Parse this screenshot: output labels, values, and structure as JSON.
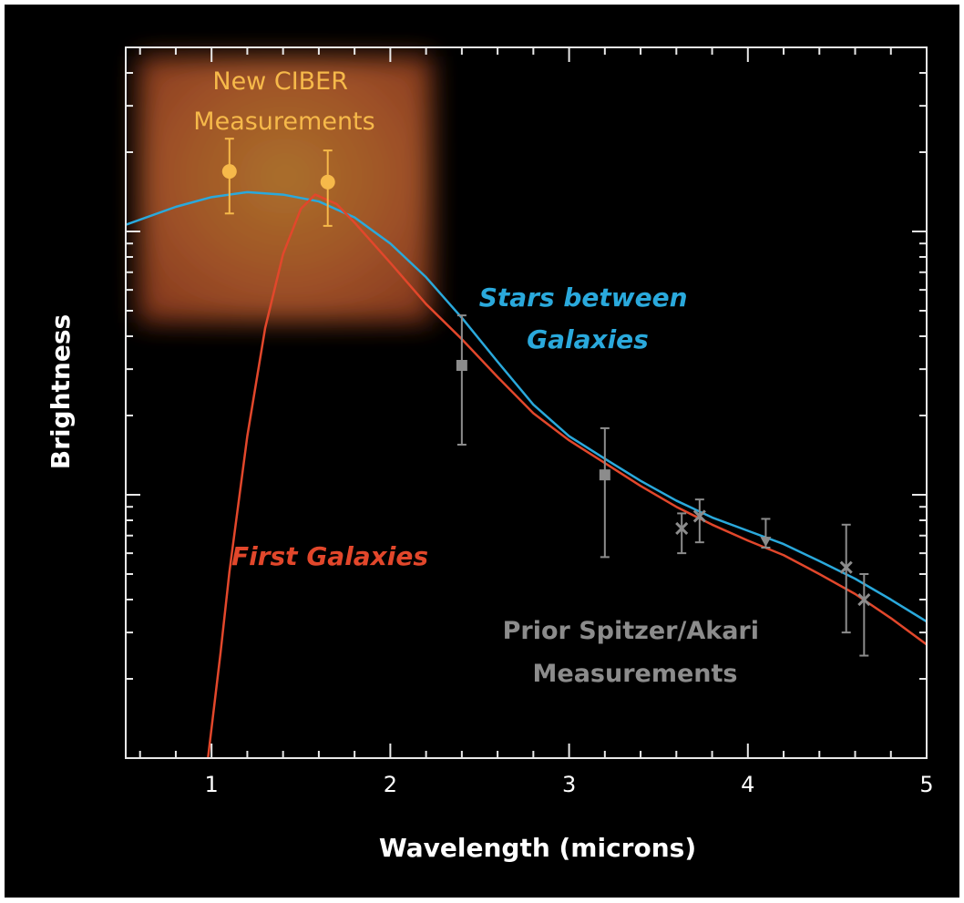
{
  "chart_data": {
    "type": "line",
    "xlabel": "Wavelength (microns)",
    "ylabel": "Brightness",
    "xlim": [
      0.52,
      5
    ],
    "xticks": [
      1,
      2,
      3,
      4,
      5
    ],
    "xminor_ticks": [
      0.6,
      0.8,
      1.2,
      1.4,
      1.6,
      1.8,
      2.2,
      2.4,
      2.6,
      2.8,
      3.2,
      3.4,
      3.6,
      3.8,
      4.2,
      4.4,
      4.6,
      4.8
    ],
    "ylim": [
      0.1,
      50
    ],
    "ylog": true,
    "yticks": [
      1,
      10
    ],
    "yminor_ticks": [
      0.2,
      0.3,
      0.4,
      0.5,
      0.6,
      0.7,
      0.8,
      0.9,
      2,
      3,
      4,
      5,
      6,
      7,
      8,
      9,
      20,
      30,
      40
    ],
    "series": [
      {
        "label": [
          "Stars between",
          "Galaxies"
        ],
        "color": "#2aa9dc",
        "x": [
          0.52,
          0.8,
          1.0,
          1.2,
          1.4,
          1.6,
          1.8,
          2.0,
          2.2,
          2.4,
          2.6,
          2.8,
          3.0,
          3.2,
          3.4,
          3.6,
          3.8,
          4.0,
          4.2,
          4.4,
          4.6,
          4.8,
          5.0
        ],
        "values": [
          10.6,
          12.4,
          13.5,
          14.1,
          13.8,
          13.0,
          11.3,
          9.0,
          6.7,
          4.7,
          3.2,
          2.2,
          1.67,
          1.37,
          1.13,
          0.95,
          0.82,
          0.73,
          0.65,
          0.56,
          0.48,
          0.4,
          0.33
        ]
      },
      {
        "label": [
          "First Galaxies"
        ],
        "color": "#e2472b",
        "x": [
          0.98,
          1.05,
          1.1,
          1.2,
          1.3,
          1.4,
          1.5,
          1.58,
          1.7,
          1.8,
          2.0,
          2.2,
          2.4,
          2.6,
          2.8,
          3.0,
          3.2,
          3.4,
          3.6,
          3.8,
          4.0,
          4.2,
          4.4,
          4.6,
          4.8,
          5.0
        ],
        "values": [
          0.1,
          0.25,
          0.51,
          1.67,
          4.3,
          8.2,
          12.2,
          13.8,
          12.7,
          10.8,
          7.6,
          5.3,
          3.9,
          2.8,
          2.04,
          1.61,
          1.32,
          1.08,
          0.9,
          0.77,
          0.67,
          0.59,
          0.5,
          0.42,
          0.34,
          0.27
        ]
      }
    ],
    "measurements": [
      {
        "label": [
          "New CIBER",
          "Measurements"
        ],
        "color": "#f6b94a",
        "x": [
          1.1,
          1.65
        ],
        "values": [
          16.9,
          15.4
        ],
        "upper": [
          22.5,
          20.3
        ],
        "lower": [
          11.7,
          10.5
        ],
        "markers": [
          "circle",
          "circle"
        ]
      },
      {
        "label": [
          "Prior Spitzer/Akari",
          "Measurements"
        ],
        "color": "#8c8c8c",
        "x": [
          2.4,
          3.2,
          3.63,
          3.73,
          4.1,
          4.55,
          4.65
        ],
        "values": [
          3.1,
          1.19,
          0.745,
          0.83,
          0.66,
          0.53,
          0.4
        ],
        "upper": [
          4.8,
          1.79,
          0.85,
          0.96,
          0.81,
          0.77,
          0.5
        ],
        "lower": [
          1.55,
          0.58,
          0.6,
          0.66,
          0.63,
          0.3,
          0.245
        ],
        "markers": [
          "square",
          "square",
          "cross",
          "cross",
          "triangle",
          "cross",
          "cross"
        ]
      }
    ]
  }
}
